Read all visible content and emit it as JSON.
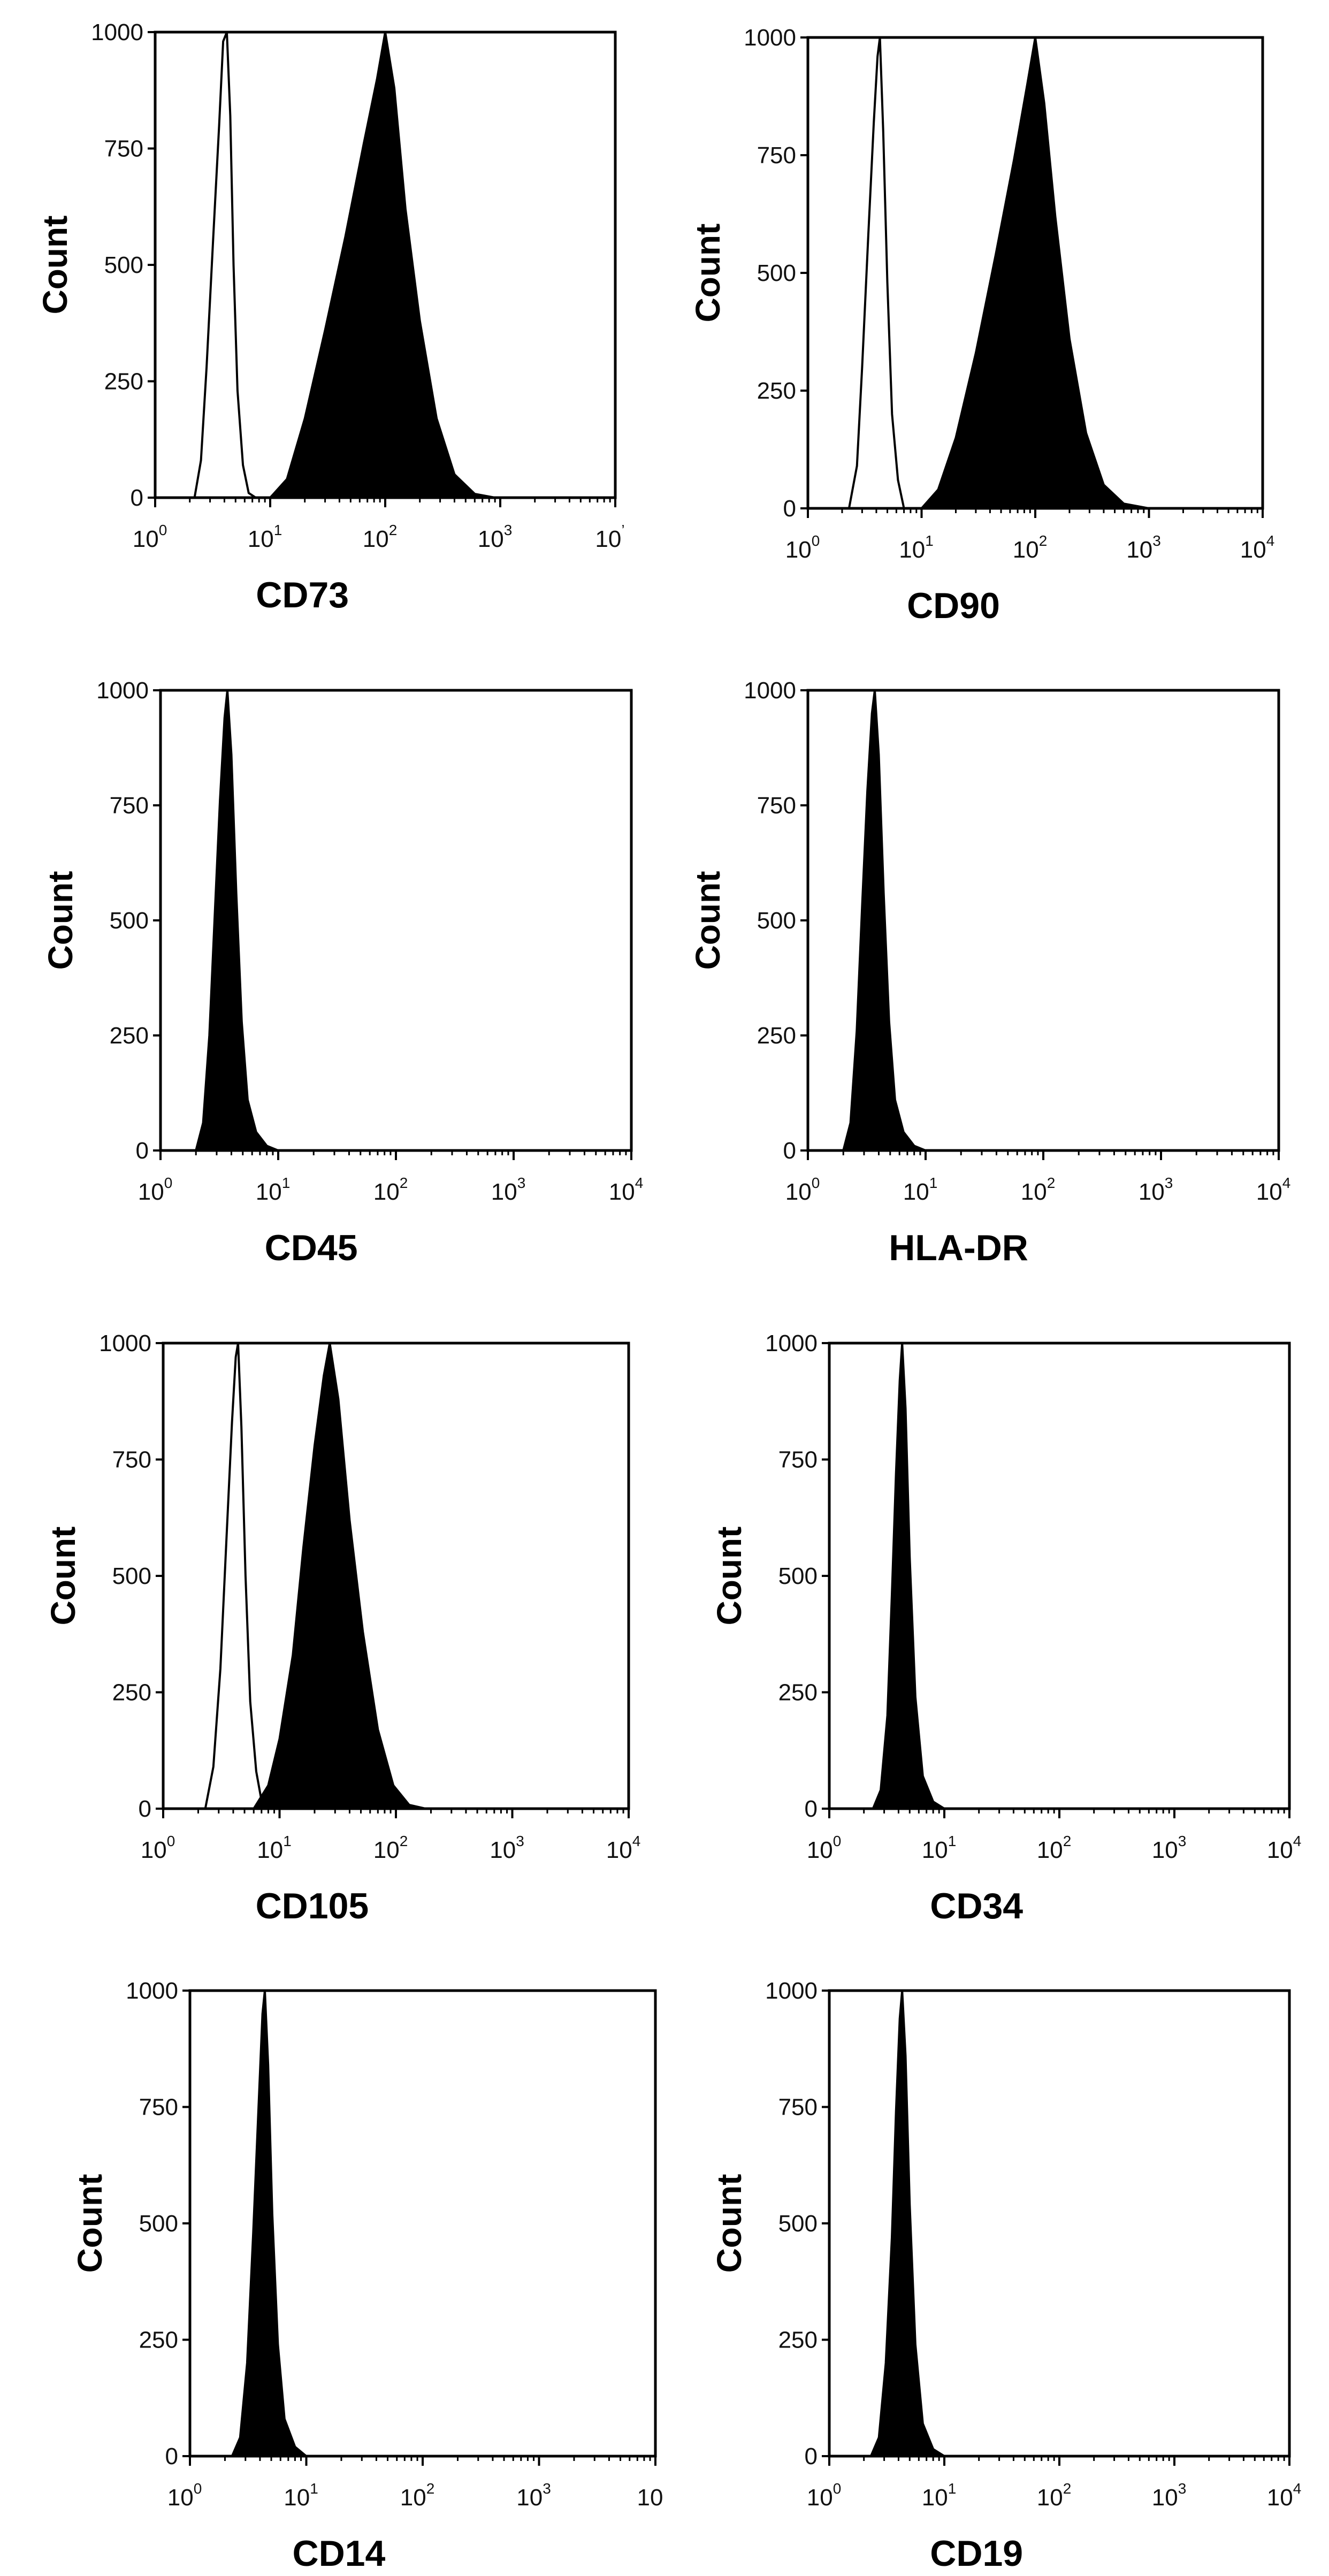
{
  "chart_data": [
    {
      "type": "histogram",
      "xlabel": "CD73",
      "ylabel": "Count",
      "xscale": "log",
      "xlim": [
        1,
        10000
      ],
      "ylim": [
        0,
        1000
      ],
      "y_ticks": [
        "0",
        "250",
        "500",
        "750",
        "1000"
      ],
      "x_ticks": [
        "10",
        "10",
        "10",
        "10",
        "10"
      ],
      "x_tick_exps": [
        "0",
        "1",
        "2",
        "3",
        "’"
      ],
      "series": [
        {
          "fill": "none",
          "values": [
            [
              2.2,
              0
            ],
            [
              2.5,
              80
            ],
            [
              2.8,
              280
            ],
            [
              3.2,
              560
            ],
            [
              3.6,
              800
            ],
            [
              3.9,
              980
            ],
            [
              4.2,
              1000
            ],
            [
              4.5,
              820
            ],
            [
              4.8,
              500
            ],
            [
              5.2,
              230
            ],
            [
              5.8,
              70
            ],
            [
              6.5,
              10
            ],
            [
              7.5,
              0
            ]
          ]
        },
        {
          "fill": "solid",
          "values": [
            [
              10,
              0
            ],
            [
              14,
              40
            ],
            [
              20,
              170
            ],
            [
              30,
              360
            ],
            [
              45,
              560
            ],
            [
              65,
              760
            ],
            [
              85,
              900
            ],
            [
              100,
              1000
            ],
            [
              120,
              880
            ],
            [
              150,
              620
            ],
            [
              200,
              380
            ],
            [
              280,
              170
            ],
            [
              400,
              50
            ],
            [
              600,
              8
            ],
            [
              900,
              0
            ]
          ]
        }
      ]
    },
    {
      "type": "histogram",
      "xlabel": "CD90",
      "ylabel": "Count",
      "xscale": "log",
      "xlim": [
        1,
        10000
      ],
      "ylim": [
        0,
        1000
      ],
      "y_ticks": [
        "0",
        "250",
        "500",
        "750",
        "1000"
      ],
      "x_ticks": [
        "10",
        "10",
        "10",
        "10",
        "10"
      ],
      "x_tick_exps": [
        "0",
        "1",
        "2",
        "3",
        "4"
      ],
      "series": [
        {
          "fill": "none",
          "values": [
            [
              2.3,
              0
            ],
            [
              2.7,
              90
            ],
            [
              3.0,
              300
            ],
            [
              3.4,
              580
            ],
            [
              3.8,
              820
            ],
            [
              4.1,
              960
            ],
            [
              4.3,
              1000
            ],
            [
              4.6,
              800
            ],
            [
              5.0,
              480
            ],
            [
              5.5,
              200
            ],
            [
              6.2,
              60
            ],
            [
              7.0,
              0
            ]
          ]
        },
        {
          "fill": "solid",
          "values": [
            [
              10,
              0
            ],
            [
              14,
              40
            ],
            [
              20,
              150
            ],
            [
              30,
              330
            ],
            [
              45,
              540
            ],
            [
              65,
              740
            ],
            [
              85,
              900
            ],
            [
              100,
              1000
            ],
            [
              120,
              860
            ],
            [
              150,
              620
            ],
            [
              200,
              360
            ],
            [
              280,
              160
            ],
            [
              400,
              50
            ],
            [
              600,
              10
            ],
            [
              1000,
              0
            ]
          ]
        }
      ]
    },
    {
      "type": "histogram",
      "xlabel": "CD45",
      "ylabel": "Count",
      "xscale": "log",
      "xlim": [
        1,
        10000
      ],
      "ylim": [
        0,
        1000
      ],
      "y_ticks": [
        "0",
        "250",
        "500",
        "750",
        "1000"
      ],
      "x_ticks": [
        "10",
        "10",
        "10",
        "10",
        "10"
      ],
      "x_tick_exps": [
        "0",
        "1",
        "2",
        "3",
        "4"
      ],
      "series": [
        {
          "fill": "solid",
          "values": [
            [
              2.0,
              0
            ],
            [
              2.3,
              60
            ],
            [
              2.6,
              250
            ],
            [
              2.9,
              520
            ],
            [
              3.2,
              760
            ],
            [
              3.5,
              940
            ],
            [
              3.7,
              1000
            ],
            [
              4.0,
              860
            ],
            [
              4.4,
              560
            ],
            [
              4.9,
              280
            ],
            [
              5.5,
              110
            ],
            [
              6.5,
              40
            ],
            [
              8.0,
              10
            ],
            [
              10,
              0
            ]
          ]
        }
      ]
    },
    {
      "type": "histogram",
      "xlabel": "HLA-DR",
      "ylabel": "Count",
      "xscale": "log",
      "xlim": [
        1,
        10000
      ],
      "ylim": [
        0,
        1000
      ],
      "y_ticks": [
        "0",
        "250",
        "500",
        "750",
        "1000"
      ],
      "x_ticks": [
        "10",
        "10",
        "10",
        "10",
        "10"
      ],
      "x_tick_exps": [
        "0",
        "1",
        "2",
        "3",
        "4"
      ],
      "series": [
        {
          "fill": "solid",
          "values": [
            [
              2.0,
              0
            ],
            [
              2.3,
              60
            ],
            [
              2.6,
              260
            ],
            [
              2.9,
              540
            ],
            [
              3.2,
              780
            ],
            [
              3.5,
              950
            ],
            [
              3.7,
              1000
            ],
            [
              4.0,
              860
            ],
            [
              4.4,
              560
            ],
            [
              4.9,
              280
            ],
            [
              5.5,
              110
            ],
            [
              6.5,
              40
            ],
            [
              8.0,
              10
            ],
            [
              10,
              0
            ]
          ]
        }
      ]
    },
    {
      "type": "histogram",
      "xlabel": "CD105",
      "ylabel": "Count",
      "xscale": "log",
      "xlim": [
        1,
        10000
      ],
      "ylim": [
        0,
        1000
      ],
      "y_ticks": [
        "0",
        "250",
        "500",
        "750",
        "1000"
      ],
      "x_ticks": [
        "10",
        "10",
        "10",
        "10",
        "10"
      ],
      "x_tick_exps": [
        "0",
        "1",
        "2",
        "3",
        "4"
      ],
      "series": [
        {
          "fill": "none",
          "values": [
            [
              2.3,
              0
            ],
            [
              2.7,
              90
            ],
            [
              3.1,
              300
            ],
            [
              3.5,
              580
            ],
            [
              3.9,
              830
            ],
            [
              4.2,
              970
            ],
            [
              4.4,
              1000
            ],
            [
              4.7,
              820
            ],
            [
              5.1,
              500
            ],
            [
              5.6,
              230
            ],
            [
              6.3,
              80
            ],
            [
              7.2,
              0
            ]
          ]
        },
        {
          "fill": "solid",
          "values": [
            [
              6,
              0
            ],
            [
              8,
              50
            ],
            [
              10,
              150
            ],
            [
              13,
              330
            ],
            [
              16,
              560
            ],
            [
              20,
              780
            ],
            [
              24,
              930
            ],
            [
              27,
              1000
            ],
            [
              32,
              880
            ],
            [
              40,
              620
            ],
            [
              52,
              380
            ],
            [
              70,
              170
            ],
            [
              95,
              50
            ],
            [
              130,
              8
            ],
            [
              180,
              0
            ]
          ]
        }
      ]
    },
    {
      "type": "histogram",
      "xlabel": "CD34",
      "ylabel": "Count",
      "xscale": "log",
      "xlim": [
        1,
        10000
      ],
      "ylim": [
        0,
        1000
      ],
      "y_ticks": [
        "0",
        "250",
        "500",
        "750",
        "1000"
      ],
      "x_ticks": [
        "10",
        "10",
        "10",
        "10",
        "10"
      ],
      "x_tick_exps": [
        "0",
        "1",
        "2",
        "3",
        "4"
      ],
      "series": [
        {
          "fill": "solid",
          "values": [
            [
              2.4,
              0
            ],
            [
              2.8,
              40
            ],
            [
              3.2,
              200
            ],
            [
              3.5,
              460
            ],
            [
              3.8,
              720
            ],
            [
              4.1,
              920
            ],
            [
              4.3,
              1000
            ],
            [
              4.6,
              860
            ],
            [
              5.0,
              540
            ],
            [
              5.6,
              240
            ],
            [
              6.5,
              70
            ],
            [
              8.0,
              15
            ],
            [
              10,
              0
            ]
          ]
        }
      ]
    },
    {
      "type": "histogram",
      "xlabel": "CD14",
      "ylabel": "Count",
      "xscale": "log",
      "xlim": [
        1,
        10000
      ],
      "ylim": [
        0,
        1000
      ],
      "y_ticks": [
        "0",
        "250",
        "500",
        "750",
        "1000"
      ],
      "x_ticks": [
        "10",
        "10",
        "10",
        "10",
        "10"
      ],
      "x_tick_exps": [
        "0",
        "1",
        "2",
        "3",
        ""
      ],
      "series": [
        {
          "fill": "solid",
          "values": [
            [
              2.3,
              0
            ],
            [
              2.7,
              40
            ],
            [
              3.1,
              200
            ],
            [
              3.5,
              480
            ],
            [
              3.9,
              760
            ],
            [
              4.2,
              950
            ],
            [
              4.4,
              1000
            ],
            [
              4.7,
              840
            ],
            [
              5.1,
              520
            ],
            [
              5.7,
              240
            ],
            [
              6.5,
              80
            ],
            [
              8.0,
              20
            ],
            [
              10,
              0
            ]
          ]
        }
      ]
    },
    {
      "type": "histogram",
      "xlabel": "CD19",
      "ylabel": "Count",
      "xscale": "log",
      "xlim": [
        1,
        10000
      ],
      "ylim": [
        0,
        1000
      ],
      "y_ticks": [
        "0",
        "250",
        "500",
        "750",
        "1000"
      ],
      "x_ticks": [
        "10",
        "10",
        "10",
        "10",
        "10"
      ],
      "x_tick_exps": [
        "0",
        "1",
        "2",
        "3",
        "4"
      ],
      "series": [
        {
          "fill": "solid",
          "values": [
            [
              2.3,
              0
            ],
            [
              2.7,
              40
            ],
            [
              3.1,
              200
            ],
            [
              3.5,
              470
            ],
            [
              3.8,
              740
            ],
            [
              4.1,
              940
            ],
            [
              4.3,
              1000
            ],
            [
              4.6,
              860
            ],
            [
              5.0,
              540
            ],
            [
              5.6,
              240
            ],
            [
              6.5,
              70
            ],
            [
              8.0,
              15
            ],
            [
              10,
              0
            ]
          ]
        }
      ]
    }
  ]
}
